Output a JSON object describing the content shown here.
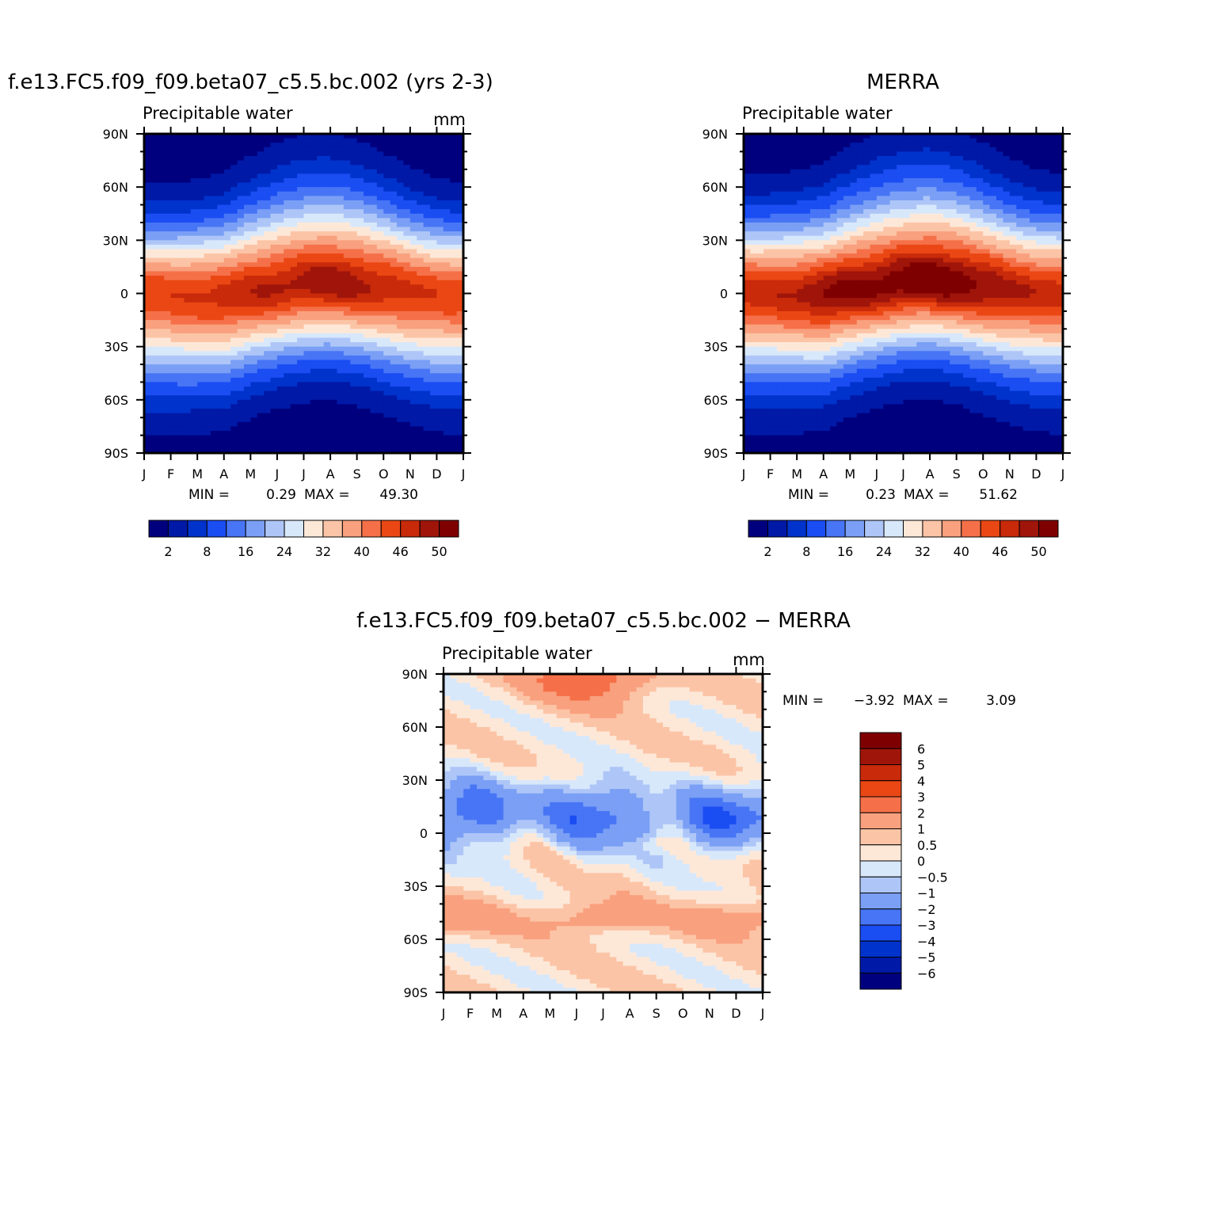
{
  "panels": [
    {
      "id": "model",
      "title": "f.e13.FC5.f09_f09.beta07_c5.5.bc.002 (yrs 2-3)",
      "left_label": "Precipitable water",
      "units": "mm",
      "stats_min_label": "MIN =",
      "stats_min": "0.29",
      "stats_max_label": "MAX =",
      "stats_max": "49.30"
    },
    {
      "id": "obs",
      "title": "MERRA",
      "left_label": "Precipitable water",
      "units": "",
      "stats_min_label": "MIN =",
      "stats_min": "0.23",
      "stats_max_label": "MAX =",
      "stats_max": "51.62"
    },
    {
      "id": "diff",
      "title": "f.e13.FC5.f09_f09.beta07_c5.5.bc.002 − MERRA",
      "left_label": "Precipitable water",
      "units": "mm",
      "stats_min_label": "MIN =",
      "stats_min": "−3.92",
      "stats_max_label": "MAX =",
      "stats_max": "3.09"
    }
  ],
  "chart_data": [
    {
      "type": "heatmap",
      "panel": "model",
      "title": "f.e13.FC5.f09_f09.beta07_c5.5.bc.002 (yrs 2-3)",
      "variable": "Precipitable water",
      "units": "mm",
      "xlabel": "month",
      "ylabel": "latitude",
      "x_ticks": [
        "J",
        "F",
        "M",
        "A",
        "M",
        "J",
        "J",
        "A",
        "S",
        "O",
        "N",
        "D",
        "J"
      ],
      "y_ticks": [
        "90N",
        "60N",
        "30N",
        "0",
        "30S",
        "60S",
        "90S"
      ],
      "x_range": [
        0,
        12
      ],
      "y_range": [
        -90,
        90
      ],
      "min": 0.29,
      "max": 49.3,
      "field": {
        "itcz_lat_by_month": [
          0,
          0,
          -1,
          -2,
          1,
          3,
          5,
          6,
          5,
          3,
          1,
          0,
          0
        ],
        "peak_by_month": [
          45,
          45,
          46,
          47,
          47,
          48,
          48.5,
          49,
          48.5,
          47.5,
          46,
          45,
          45
        ],
        "north_width": 40,
        "south_width": 40
      }
    },
    {
      "type": "heatmap",
      "panel": "obs",
      "title": "MERRA",
      "variable": "Precipitable water",
      "units": "",
      "xlabel": "month",
      "ylabel": "latitude",
      "x_ticks": [
        "J",
        "F",
        "M",
        "A",
        "M",
        "J",
        "J",
        "A",
        "S",
        "O",
        "N",
        "D",
        "J"
      ],
      "y_ticks": [
        "90N",
        "60N",
        "30N",
        "0",
        "30S",
        "60S",
        "90S"
      ],
      "x_range": [
        0,
        12
      ],
      "y_range": [
        -90,
        90
      ],
      "min": 0.23,
      "max": 51.62,
      "field": {
        "itcz_lat_by_month": [
          1,
          1,
          0,
          -1,
          2,
          4,
          6,
          7,
          6,
          4,
          2,
          1,
          1
        ],
        "peak_by_month": [
          47,
          47,
          48,
          50,
          50,
          50.5,
          51,
          51.5,
          51,
          50,
          48,
          47,
          47
        ],
        "north_width": 42,
        "south_width": 40
      }
    },
    {
      "type": "heatmap",
      "panel": "diff",
      "title": "f.e13.FC5.f09_f09.beta07_c5.5.bc.002 − MERRA",
      "variable": "Precipitable water",
      "units": "mm",
      "xlabel": "month",
      "ylabel": "latitude",
      "x_ticks": [
        "J",
        "F",
        "M",
        "A",
        "M",
        "J",
        "J",
        "A",
        "S",
        "O",
        "N",
        "D",
        "J"
      ],
      "y_ticks": [
        "90N",
        "60N",
        "30N",
        "0",
        "30S",
        "60S",
        "90S"
      ],
      "x_range": [
        0,
        12
      ],
      "y_range": [
        -90,
        90
      ],
      "min": -3.92,
      "max": 3.09,
      "field": {
        "neg_band_center_lat": 10,
        "neg_band_width": 18,
        "neg_band_amp": -3.2,
        "arctic_summer_amp": 2.6,
        "sh_midlat_amp": 1.3,
        "background": 0.35
      }
    }
  ],
  "colorbars": {
    "main": {
      "labels": [
        "2",
        "8",
        "16",
        "24",
        "32",
        "40",
        "46",
        "50"
      ],
      "levels": [
        2,
        5,
        8,
        12,
        16,
        20,
        24,
        28,
        32,
        36,
        40,
        43,
        46,
        48,
        50
      ],
      "colors": [
        "#00007f",
        "#0019a6",
        "#0033cc",
        "#1a4df2",
        "#4775f5",
        "#7a9ff5",
        "#aec6f7",
        "#d8e8fb",
        "#fde8d8",
        "#fcc4a6",
        "#f9a07e",
        "#f57048",
        "#ea4714",
        "#c82a0a",
        "#a0150a",
        "#7f0000"
      ]
    },
    "diff": {
      "labels": [
        "6",
        "5",
        "4",
        "3",
        "2",
        "1",
        "0.5",
        "0",
        "−0.5",
        "−1",
        "−2",
        "−3",
        "−4",
        "−5",
        "−6"
      ],
      "levels": [
        -6,
        -5,
        -4,
        -3,
        -2,
        -1,
        -0.5,
        0,
        0.5,
        1,
        2,
        3,
        4,
        5,
        6
      ],
      "colors": [
        "#00007f",
        "#0019a6",
        "#0033cc",
        "#1a4df2",
        "#4775f5",
        "#7a9ff5",
        "#aec6f7",
        "#d8e8fb",
        "#fde8d8",
        "#fcc4a6",
        "#f9a07e",
        "#f57048",
        "#ea4714",
        "#c82a0a",
        "#a0150a",
        "#7f0000"
      ]
    }
  }
}
